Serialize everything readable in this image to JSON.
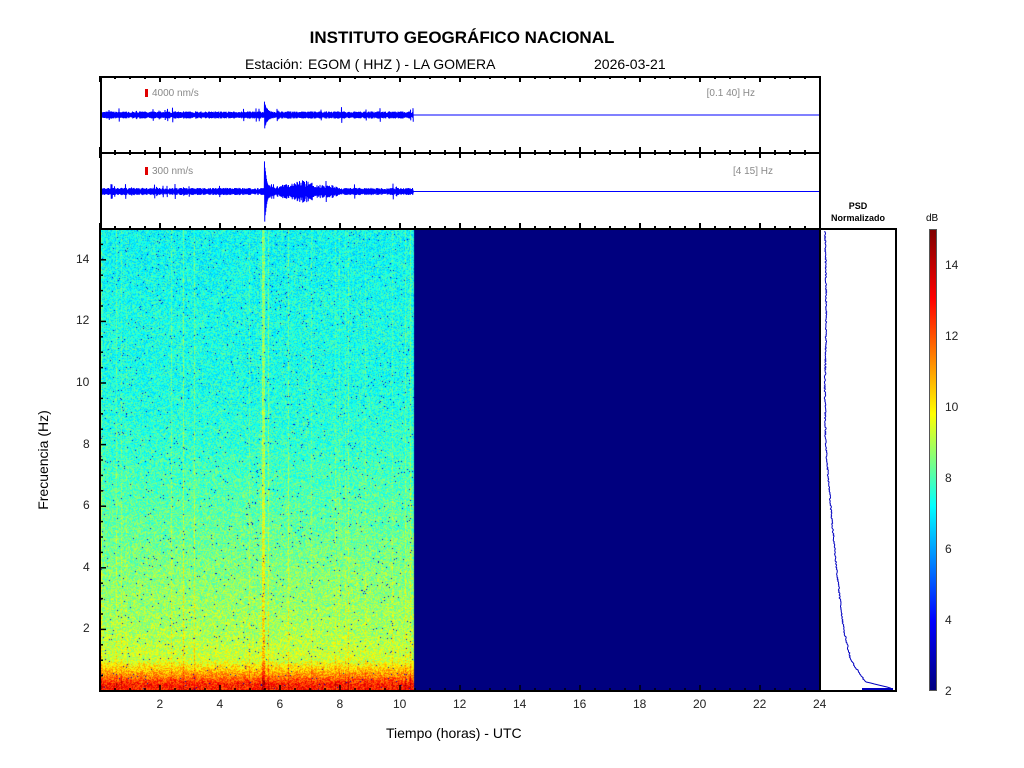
{
  "header": {
    "title": "INSTITUTO GEOGRÁFICO NACIONAL",
    "station_label": "Estación:",
    "station": "EGOM ( HHZ ) - LA GOMERA",
    "date": "2026-03-21"
  },
  "traces": [
    {
      "scale": "4000 nm/s",
      "band": "[0.1 40] Hz"
    },
    {
      "scale": "300 nm/s",
      "band": "[4 15] Hz"
    }
  ],
  "psd": {
    "title_line1": "PSD",
    "title_line2": "Normalizado"
  },
  "colorbar": {
    "unit": "dB",
    "ticks": [
      "2",
      "4",
      "6",
      "8",
      "10",
      "12",
      "14"
    ],
    "range": [
      2,
      15
    ]
  },
  "colors": {
    "trace": "#0000ff",
    "scale_marker": "#e00000",
    "empty": "#00007f"
  },
  "chart_data": {
    "type": "heatmap",
    "title": "INSTITUTO GEOGRÁFICO NACIONAL",
    "xlabel": "Tiempo (horas) - UTC",
    "ylabel": "Frecuencia  (Hz)",
    "xlim": [
      0,
      24
    ],
    "ylim": [
      0,
      15
    ],
    "xticks": [
      "2",
      "4",
      "6",
      "8",
      "10",
      "12",
      "14",
      "16",
      "18",
      "20",
      "22",
      "24"
    ],
    "yticks": [
      "2",
      "4",
      "6",
      "8",
      "10",
      "12",
      "14"
    ],
    "data_end_hour": 10.4,
    "event_hour": 5.4,
    "mean_db_by_freq": {
      "freq_hz": [
        0.2,
        0.5,
        1,
        2,
        4,
        6,
        8,
        10,
        12,
        14
      ],
      "db": [
        13,
        11.5,
        9.5,
        9,
        8.5,
        8,
        7.5,
        7.2,
        7.2,
        7
      ]
    },
    "psd_normalized": {
      "freq_hz": [
        0.1,
        0.3,
        1,
        2,
        4,
        6,
        8,
        10,
        12,
        14,
        15
      ],
      "value": [
        0.95,
        0.6,
        0.4,
        0.3,
        0.2,
        0.12,
        0.05,
        0.04,
        0.06,
        0.05,
        0.04
      ]
    }
  }
}
